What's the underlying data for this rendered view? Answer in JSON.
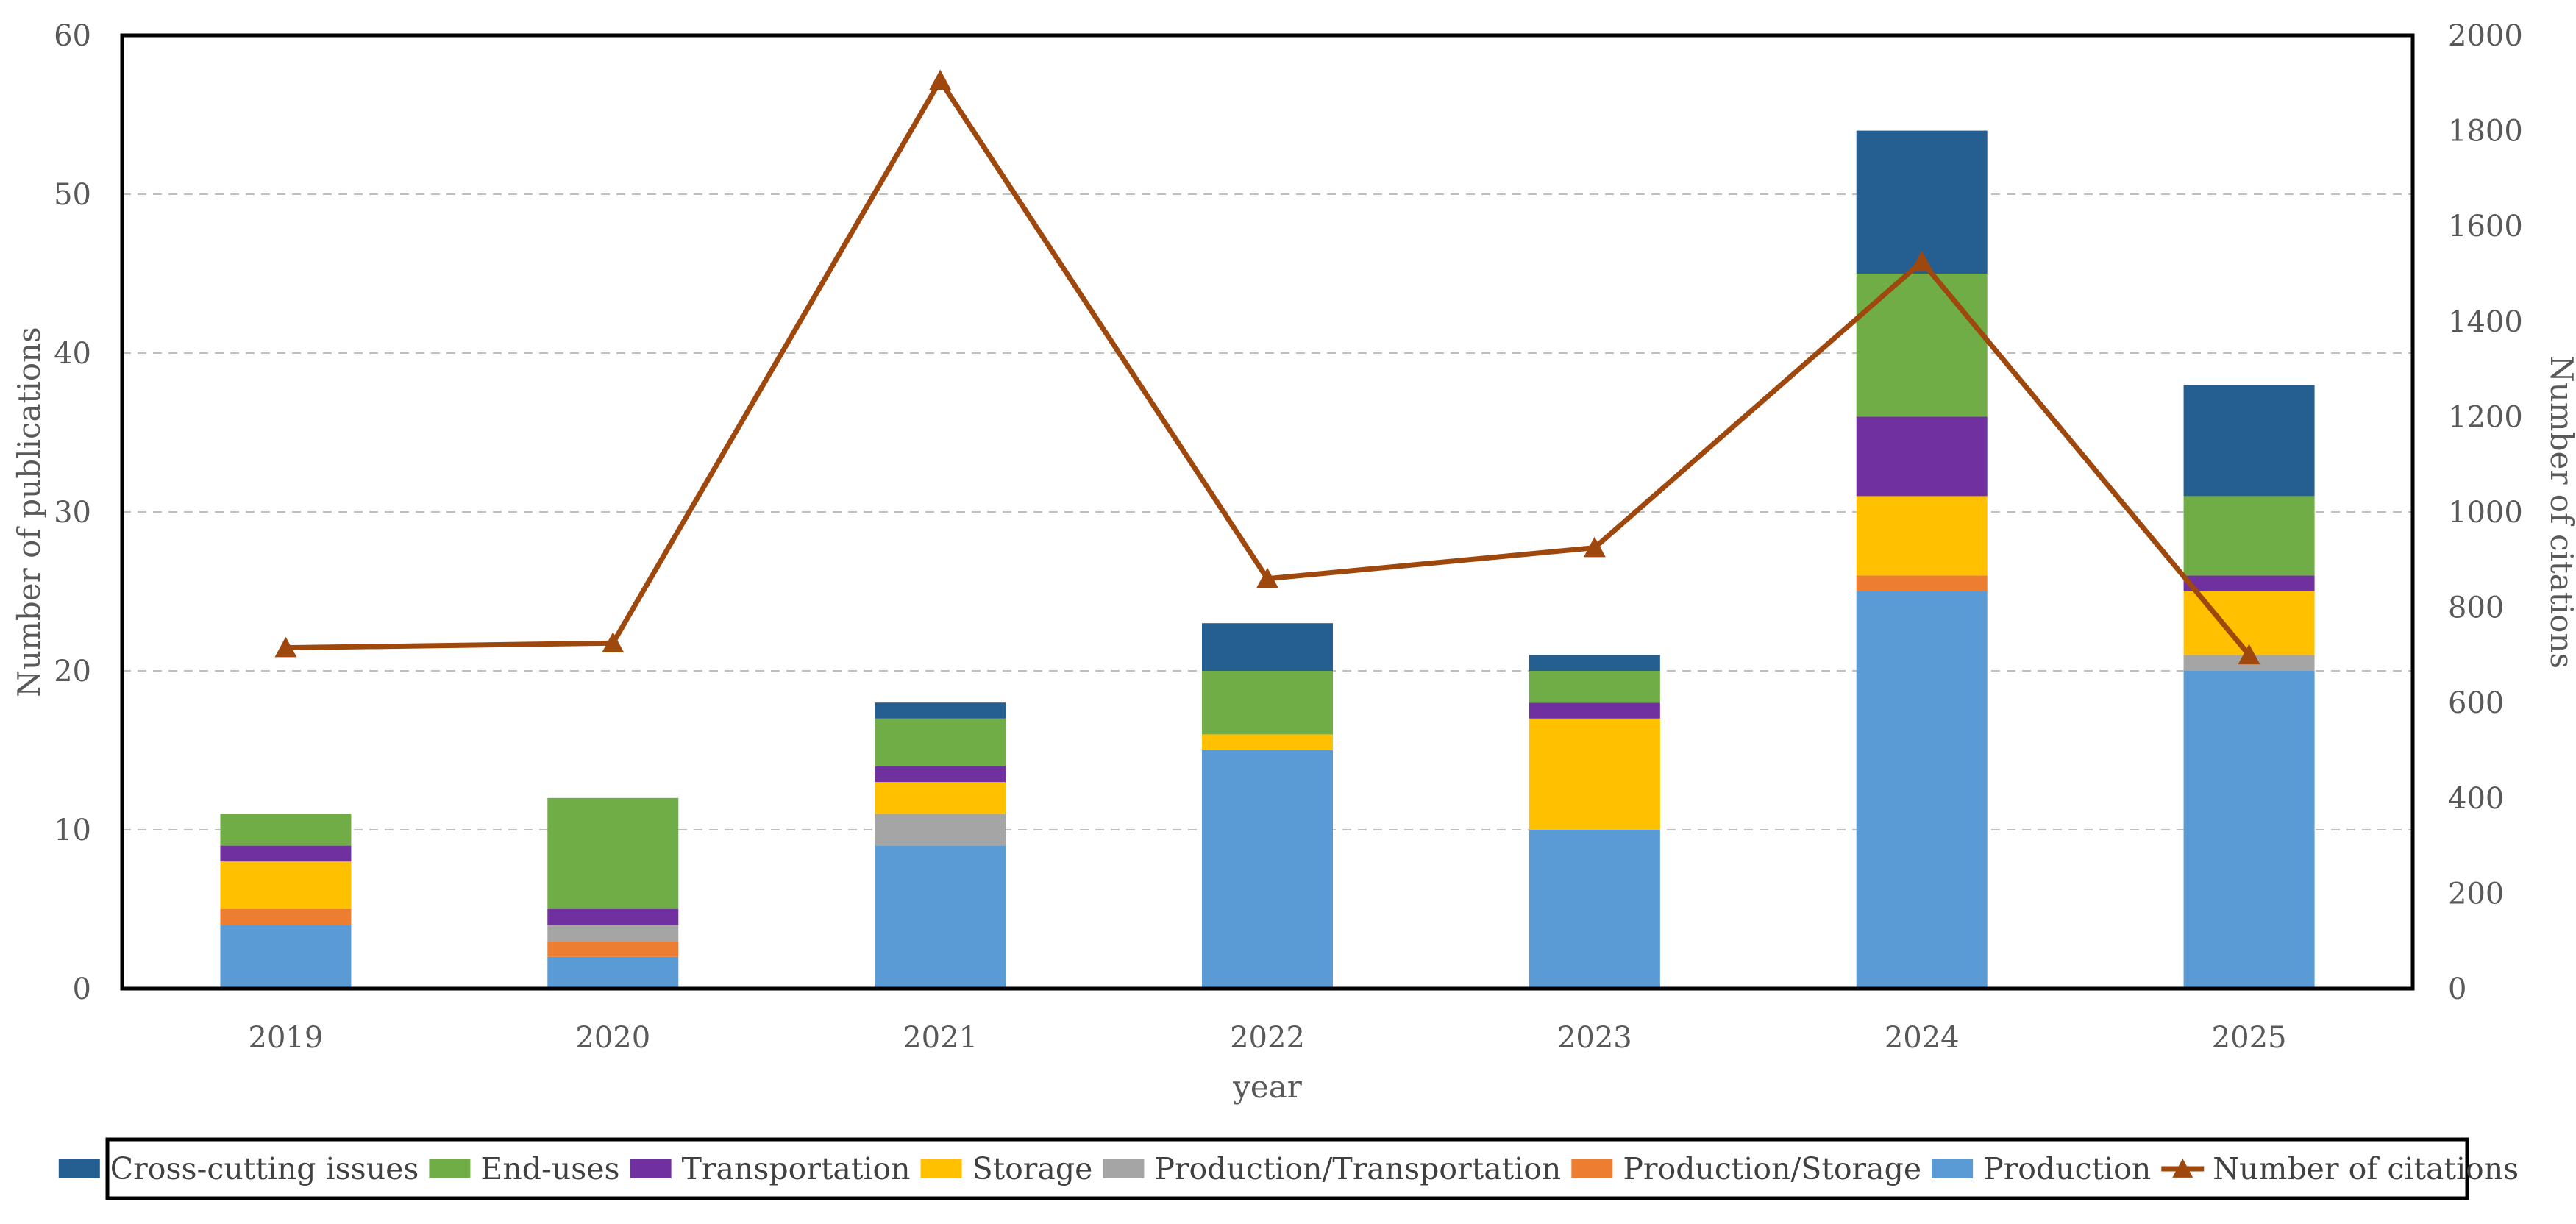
{
  "chart_data": {
    "type": "bar",
    "stacked": true,
    "categories": [
      "2019",
      "2020",
      "2021",
      "2022",
      "2023",
      "2024",
      "2025"
    ],
    "series": [
      {
        "name": "Production",
        "color": "#5b9bd5",
        "values": [
          4,
          2,
          9,
          15,
          10,
          25,
          20
        ]
      },
      {
        "name": "Production/Storage",
        "color": "#ed7d31",
        "values": [
          1,
          1,
          0,
          0,
          0,
          1,
          0
        ]
      },
      {
        "name": "Production/Transportation",
        "color": "#a5a5a5",
        "values": [
          0,
          1,
          2,
          0,
          0,
          0,
          1
        ]
      },
      {
        "name": "Storage",
        "color": "#ffc000",
        "values": [
          3,
          0,
          2,
          1,
          7,
          5,
          4
        ]
      },
      {
        "name": "Transportation",
        "color": "#7030a0",
        "values": [
          1,
          1,
          1,
          0,
          1,
          5,
          1
        ]
      },
      {
        "name": "End-uses",
        "color": "#70ad47",
        "values": [
          2,
          7,
          3,
          4,
          2,
          9,
          5
        ]
      },
      {
        "name": "Cross-cutting issues",
        "color": "#255e91",
        "values": [
          0,
          0,
          1,
          3,
          1,
          9,
          7
        ]
      }
    ],
    "line_series": {
      "name": "Number of citations",
      "color": "#9e480e",
      "axis": "secondary",
      "values": [
        715,
        725,
        1905,
        860,
        925,
        1525,
        700
      ]
    },
    "xlabel": "year",
    "ylabel": "Number of publications",
    "y2label": "Number of citations",
    "ylim": [
      0,
      60
    ],
    "y2lim": [
      0,
      2000
    ],
    "yticks": [
      "0",
      "10",
      "20",
      "30",
      "40",
      "50",
      "60"
    ],
    "y2ticks": [
      "0",
      "200",
      "400",
      "600",
      "800",
      "1000",
      "1200",
      "1400",
      "1600",
      "1800",
      "2000"
    ],
    "grid": true,
    "legend_position": "bottom",
    "legend_order": [
      "Cross-cutting issues",
      "End-uses",
      "Transportation",
      "Storage",
      "Production/Transportation",
      "Production/Storage",
      "Production",
      "Number of citations"
    ]
  }
}
